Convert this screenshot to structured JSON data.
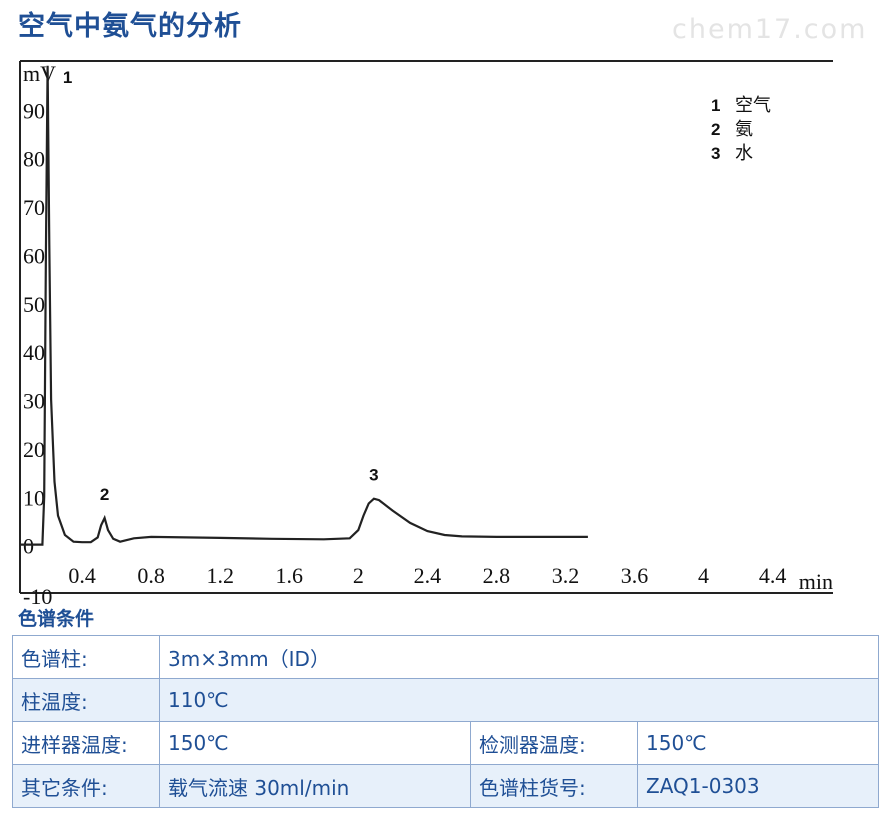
{
  "header": {
    "title": "空气中氨气的分析",
    "watermark": "chem17.com"
  },
  "chart_data": {
    "type": "line",
    "ylabel": "mV",
    "xlabel": "min",
    "xlim": [
      0.04,
      4.75
    ],
    "ylim": [
      -10,
      100
    ],
    "x_ticks": [
      0.4,
      0.8,
      1.2,
      1.6,
      2,
      2.4,
      2.8,
      3.2,
      3.6,
      4,
      4.4
    ],
    "x_tick_labels": [
      "0.4",
      "0.8",
      "1.2",
      "1.6",
      "2",
      "2.4",
      "2.8",
      "3.2",
      "3.6",
      "4",
      "4.4"
    ],
    "y_ticks": [
      0,
      10,
      20,
      30,
      40,
      50,
      60,
      70,
      80,
      90
    ],
    "y_tick_labels": [
      "0",
      "10",
      "20",
      "30",
      "40",
      "50",
      "60",
      "70",
      "80",
      "90"
    ],
    "y_bottom_label": "-10",
    "grid": false,
    "series": [
      {
        "x": [
          0.04,
          0.17,
          0.18,
          0.19,
          0.2,
          0.21,
          0.22,
          0.24,
          0.26,
          0.3,
          0.35,
          0.4,
          0.45,
          0.49,
          0.51,
          0.53,
          0.55,
          0.58,
          0.62,
          0.7,
          0.8,
          1.0,
          1.2,
          1.5,
          1.8,
          1.95,
          2.0,
          2.03,
          2.06,
          2.09,
          2.12,
          2.2,
          2.3,
          2.4,
          2.5,
          2.6,
          2.8,
          3.0,
          3.2,
          3.33
        ],
        "y": [
          0,
          0,
          10,
          60,
          99,
          62,
          30,
          13,
          6,
          2,
          0.6,
          0.5,
          0.5,
          1.5,
          4,
          5.5,
          3,
          1.2,
          0.6,
          1.3,
          1.6,
          1.5,
          1.4,
          1.2,
          1.1,
          1.3,
          3,
          6,
          8.5,
          9.5,
          9.2,
          7,
          4.5,
          2.8,
          2.0,
          1.7,
          1.6,
          1.6,
          1.6,
          1.6
        ]
      }
    ],
    "peaks": [
      {
        "label": "1",
        "x": 0.2,
        "y": 99
      },
      {
        "label": "2",
        "x": 0.53,
        "y": 5.5
      },
      {
        "label": "3",
        "x": 2.09,
        "y": 9.5
      }
    ],
    "legend": {
      "placement": "top-right",
      "items": [
        {
          "num": "1",
          "name": "空气"
        },
        {
          "num": "2",
          "name": "氨"
        },
        {
          "num": "3",
          "name": "水"
        }
      ]
    }
  },
  "conditions": {
    "section_title": "色谱条件",
    "column_label": "色谱柱:",
    "column_value": "3m×3mm（ID）",
    "column_temp_label": "柱温度:",
    "column_temp_value": "110℃",
    "injector_label": "进样器温度:",
    "injector_value": "150℃",
    "detector_label": "检测器温度:",
    "detector_value": "150℃",
    "other_label": "其它条件:",
    "other_value": "载气流速 30ml/min",
    "part_label": "色谱柱货号:",
    "part_value": "ZAQ1-0303"
  }
}
